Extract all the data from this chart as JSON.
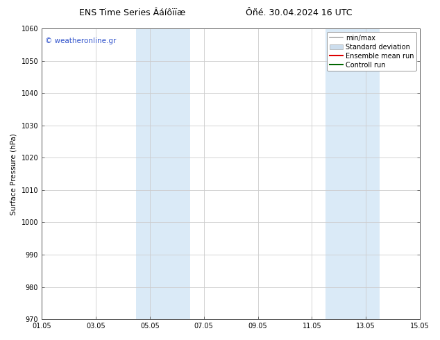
{
  "title_left": "ENS Time Series Âáíôïïæ",
  "title_right": "Ôñé. 30.04.2024 16 UTC",
  "ylabel": "Surface Pressure (hPa)",
  "ylim": [
    970,
    1060
  ],
  "yticks": [
    970,
    980,
    990,
    1000,
    1010,
    1020,
    1030,
    1040,
    1050,
    1060
  ],
  "xtick_labels": [
    "01.05",
    "03.05",
    "05.05",
    "07.05",
    "09.05",
    "11.05",
    "13.05",
    "15.05"
  ],
  "xtick_positions_days": [
    0,
    2,
    4,
    6,
    8,
    10,
    12,
    14
  ],
  "x_min": 0,
  "x_max": 14,
  "shade_bands": [
    {
      "start_day": 3.5,
      "end_day": 5.5
    },
    {
      "start_day": 10.5,
      "end_day": 12.5
    }
  ],
  "shade_color": "#daeaf7",
  "watermark_text": "© weatheronline.gr",
  "watermark_color": "#3355cc",
  "legend_entries": [
    {
      "label": "min/max",
      "color": "#aaaaaa",
      "lw": 1.2,
      "style": "solid"
    },
    {
      "label": "Standard deviation",
      "color": "#ccdded",
      "lw": 6,
      "style": "solid"
    },
    {
      "label": "Ensemble mean run",
      "color": "#dd0000",
      "lw": 1.5,
      "style": "solid"
    },
    {
      "label": "Controll run",
      "color": "#006600",
      "lw": 1.5,
      "style": "solid"
    }
  ],
  "bg_color": "#ffffff",
  "plot_bg_color": "#ffffff",
  "grid_color": "#cccccc",
  "title_fontsize": 9,
  "axis_label_fontsize": 7.5,
  "tick_fontsize": 7,
  "watermark_fontsize": 7.5,
  "legend_fontsize": 7
}
